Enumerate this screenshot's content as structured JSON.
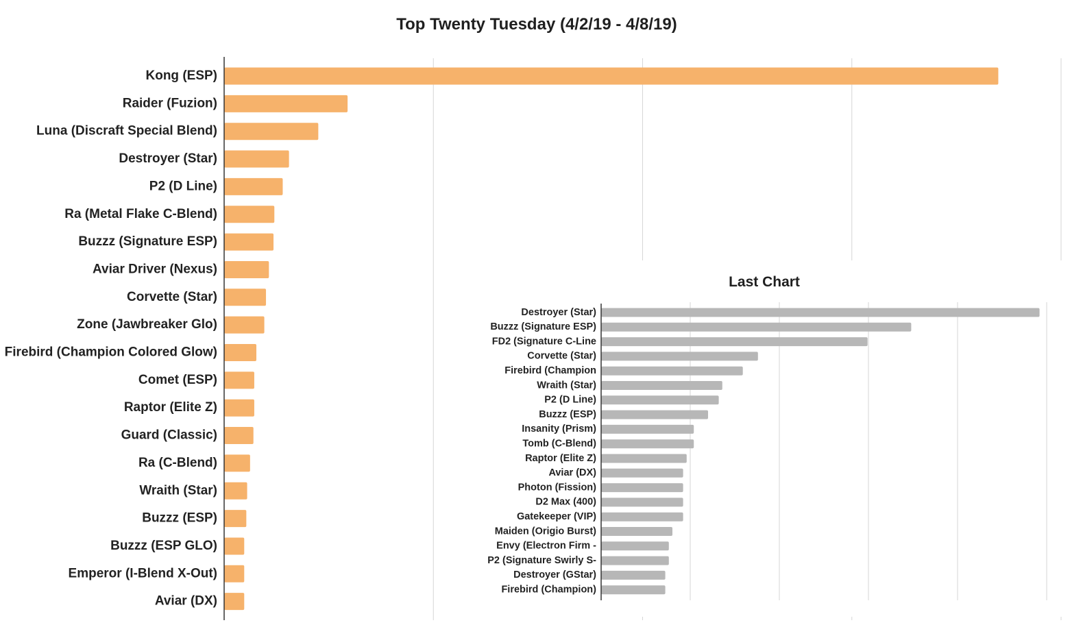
{
  "chart_data": [
    {
      "type": "bar",
      "orientation": "horizontal",
      "title": "Top Twenty Tuesday (4/2/19 - 4/8/19)",
      "xlabel": "",
      "ylabel": "",
      "categories": [
        "Kong (ESP)",
        "Raider (Fuzion)",
        "Luna (Discraft Special Blend)",
        "Destroyer (Star)",
        "P2 (D Line)",
        "Ra (Metal Flake C-Blend)",
        "Buzzz (Signature ESP)",
        "Aviar Driver (Nexus)",
        "Corvette (Star)",
        "Zone (Jawbreaker Glo)",
        "Firebird (Champion Colored Glow)",
        "Comet (ESP)",
        "Raptor (Elite Z)",
        "Guard (Classic)",
        "Ra (C-Blend)",
        "Wraith (Star)",
        "Buzzz (ESP)",
        "Buzzz (ESP GLO)",
        "Emperor (I-Blend X-Out)",
        "Aviar (DX)"
      ],
      "values": [
        185,
        29.5,
        22.5,
        15.5,
        14,
        12,
        11.8,
        10.7,
        10,
        9.6,
        7.7,
        7.2,
        7.2,
        7,
        6.2,
        5.5,
        5.3,
        4.8,
        4.8,
        4.8
      ],
      "xlim": [
        0,
        200
      ],
      "grid": true,
      "tick_labels_shown": false,
      "color": "#F6B26B"
    },
    {
      "type": "bar",
      "orientation": "horizontal",
      "title": "Last Chart",
      "xlabel": "",
      "ylabel": "",
      "categories": [
        "Destroyer (Star)",
        "Buzzz (Signature ESP)",
        "FD2 (Signature C-Line",
        "Corvette (Star)",
        "Firebird (Champion",
        "Wraith (Star)",
        "P2 (D Line)",
        "Buzzz (ESP)",
        "Insanity (Prism)",
        "Tomb (C-Blend)",
        "Raptor (Elite Z)",
        "Aviar (DX)",
        "Photon (Fission)",
        "D2 Max (400)",
        "Gatekeeper (VIP)",
        "Maiden (Origio Burst)",
        "Envy (Electron Firm -",
        "P2 (Signature Swirly S-",
        "Destroyer (GStar)",
        "Firebird (Champion)"
      ],
      "values": [
        49.2,
        34.8,
        29.9,
        17.6,
        15.9,
        13.6,
        13.2,
        12,
        10.4,
        10.4,
        9.6,
        9.2,
        9.2,
        9.2,
        9.2,
        8,
        7.6,
        7.6,
        7.2,
        7.2
      ],
      "xlim": [
        0,
        50
      ],
      "grid": true,
      "tick_labels_shown": false,
      "color": "#B7B7B7"
    }
  ]
}
